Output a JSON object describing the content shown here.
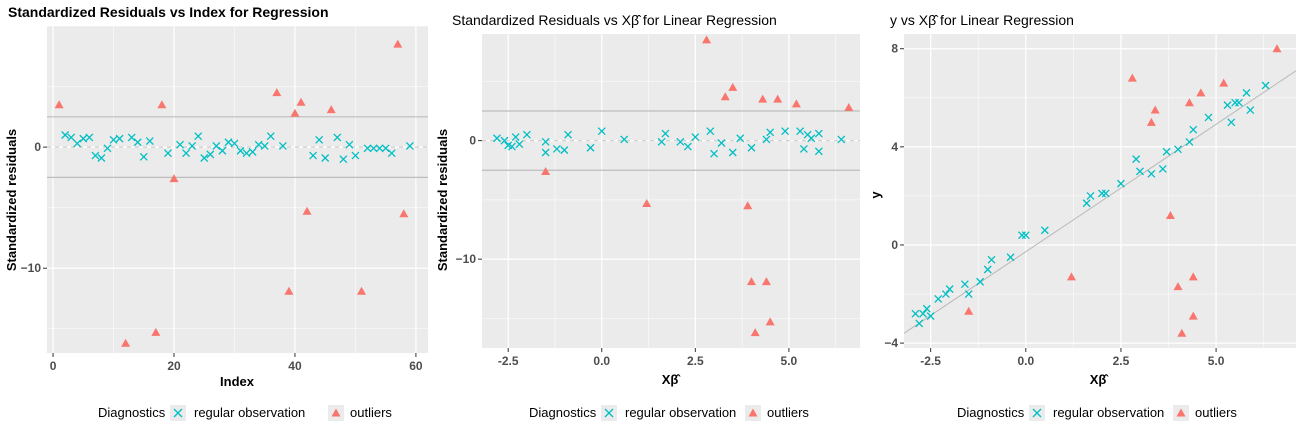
{
  "colors": {
    "regular": "#00bfc4",
    "outliers": "#f8766d",
    "panel": "#ebebeb",
    "grid": "#ffffff",
    "hline": "#bdbdbd"
  },
  "legend": {
    "title": "Diagnostics",
    "regular": "regular observation",
    "outliers": "outliers"
  },
  "chart_data": [
    {
      "type": "scatter",
      "title": "Standardized Residuals vs Index for Regression",
      "xlabel": "Index",
      "ylabel": "Standardized residuals",
      "xlim": [
        -1,
        62
      ],
      "ylim": [
        -17,
        10
      ],
      "xticks": [
        0,
        20,
        40,
        60
      ],
      "yticks": [
        -10,
        0
      ],
      "hlines": [
        2.5,
        -2.5
      ],
      "dashed_hline": 0,
      "series": [
        {
          "key": "regular",
          "marker": "x",
          "points": [
            [
              2,
              1
            ],
            [
              3,
              0.8
            ],
            [
              4,
              0.3
            ],
            [
              5,
              0.7
            ],
            [
              6,
              0.8
            ],
            [
              7,
              -0.7
            ],
            [
              8,
              -0.9
            ],
            [
              9,
              -0.1
            ],
            [
              10,
              0.6
            ],
            [
              11,
              0.7
            ],
            [
              13,
              0.8
            ],
            [
              14,
              0.4
            ],
            [
              15,
              -0.8
            ],
            [
              16,
              0.5
            ],
            [
              19,
              -0.5
            ],
            [
              21,
              0.2
            ],
            [
              22,
              -0.5
            ],
            [
              23,
              0.1
            ],
            [
              24,
              0.9
            ],
            [
              25,
              -0.9
            ],
            [
              26,
              -0.6
            ],
            [
              27,
              0.1
            ],
            [
              28,
              -0.3
            ],
            [
              29,
              0.4
            ],
            [
              30,
              0.3
            ],
            [
              31,
              -0.3
            ],
            [
              32,
              -0.5
            ],
            [
              33,
              -0.4
            ],
            [
              34,
              0.2
            ],
            [
              35,
              0.1
            ],
            [
              36,
              0.9
            ],
            [
              38,
              0.1
            ],
            [
              43,
              -0.7
            ],
            [
              44,
              0.6
            ],
            [
              45,
              -0.9
            ],
            [
              47,
              0.8
            ],
            [
              48,
              -1
            ],
            [
              49,
              0.2
            ],
            [
              50,
              -0.7
            ],
            [
              52,
              -0.1
            ],
            [
              53,
              -0.1
            ],
            [
              54,
              -0.1
            ],
            [
              55,
              -0.1
            ],
            [
              56,
              -0.5
            ],
            [
              59,
              0.1
            ]
          ]
        },
        {
          "key": "outliers",
          "marker": "triangle",
          "points": [
            [
              1,
              3.5
            ],
            [
              12,
              -16.2
            ],
            [
              17,
              -15.3
            ],
            [
              18,
              3.5
            ],
            [
              20,
              -2.6
            ],
            [
              37,
              4.5
            ],
            [
              40,
              2.8
            ],
            [
              41,
              3.7
            ],
            [
              42,
              -5.3
            ],
            [
              39,
              -11.9
            ],
            [
              46,
              3.1
            ],
            [
              51,
              -11.9
            ],
            [
              57,
              8.5
            ],
            [
              58,
              -5.5
            ]
          ]
        }
      ]
    },
    {
      "type": "scatter",
      "title": "Standardized Residuals vs Xβ̂ for Linear Regression",
      "xlabel": "Xβ̂",
      "ylabel": "Standardized residuals",
      "xlim": [
        -3.2,
        6.9
      ],
      "ylim": [
        -17.5,
        9
      ],
      "xticks": [
        -2.5,
        0.0,
        2.5,
        5.0
      ],
      "yticks": [
        -10,
        0
      ],
      "hlines": [
        2.5,
        -2.5
      ],
      "dashed_hline": 0,
      "series": [
        {
          "key": "regular",
          "marker": "x",
          "points": [
            [
              -2.8,
              0.2
            ],
            [
              -2.6,
              0
            ],
            [
              -2.5,
              -0.4
            ],
            [
              -2.4,
              -0.5
            ],
            [
              -2.3,
              0.3
            ],
            [
              -2.2,
              -0.3
            ],
            [
              -2,
              0.5
            ],
            [
              -1.5,
              -0.1
            ],
            [
              -1.5,
              -1
            ],
            [
              -1.2,
              -0.7
            ],
            [
              -1,
              -0.8
            ],
            [
              -0.9,
              0.5
            ],
            [
              -0.3,
              -0.6
            ],
            [
              0,
              0.8
            ],
            [
              0.6,
              0.1
            ],
            [
              1.6,
              -0.1
            ],
            [
              1.7,
              0.6
            ],
            [
              2.1,
              -0.1
            ],
            [
              2.3,
              -0.5
            ],
            [
              2.5,
              0.3
            ],
            [
              2.9,
              0.8
            ],
            [
              3,
              -1.1
            ],
            [
              3.2,
              -0.2
            ],
            [
              3.5,
              -1
            ],
            [
              3.7,
              0.2
            ],
            [
              4,
              -0.6
            ],
            [
              4.4,
              0.1
            ],
            [
              4.5,
              0.7
            ],
            [
              4.9,
              0.8
            ],
            [
              5.3,
              0.8
            ],
            [
              5.4,
              -0.7
            ],
            [
              5.5,
              0.5
            ],
            [
              5.6,
              0.2
            ],
            [
              5.8,
              -0.9
            ],
            [
              5.8,
              0.6
            ],
            [
              6.4,
              0.1
            ]
          ]
        },
        {
          "key": "outliers",
          "marker": "triangle",
          "points": [
            [
              -1.5,
              -2.6
            ],
            [
              1.2,
              -5.3
            ],
            [
              2.8,
              8.5
            ],
            [
              3.3,
              3.7
            ],
            [
              3.5,
              4.5
            ],
            [
              3.9,
              -5.5
            ],
            [
              4,
              -11.9
            ],
            [
              4.1,
              -16.2
            ],
            [
              4.3,
              3.5
            ],
            [
              4.4,
              -11.9
            ],
            [
              4.5,
              -15.3
            ],
            [
              4.7,
              3.5
            ],
            [
              5.2,
              3.1
            ],
            [
              6.6,
              2.8
            ]
          ]
        }
      ]
    },
    {
      "type": "scatter",
      "title": "y vs Xβ̂ for Linear Regression",
      "xlabel": "Xβ̂",
      "ylabel": "y",
      "xlim": [
        -3.2,
        7.1
      ],
      "ylim": [
        -4.2,
        8.6
      ],
      "xticks": [
        -2.5,
        0.0,
        2.5,
        5.0
      ],
      "yticks": [
        -4,
        0,
        4,
        8
      ],
      "fit_line": [
        [
          -3.2,
          -3.6
        ],
        [
          7.1,
          7.1
        ]
      ],
      "series": [
        {
          "key": "regular",
          "marker": "x",
          "points": [
            [
              -2.9,
              -2.8
            ],
            [
              -2.8,
              -3.2
            ],
            [
              -2.7,
              -2.8
            ],
            [
              -2.6,
              -2.6
            ],
            [
              -2.5,
              -2.9
            ],
            [
              -2.3,
              -2.2
            ],
            [
              -2.1,
              -2
            ],
            [
              -2,
              -1.8
            ],
            [
              -1.6,
              -1.6
            ],
            [
              -1.5,
              -2
            ],
            [
              -1.2,
              -1.5
            ],
            [
              -1,
              -1
            ],
            [
              -0.9,
              -0.6
            ],
            [
              -0.4,
              -0.5
            ],
            [
              -0.1,
              0.4
            ],
            [
              0,
              0.4
            ],
            [
              0.5,
              0.6
            ],
            [
              1.6,
              1.7
            ],
            [
              1.7,
              2
            ],
            [
              2,
              2.1
            ],
            [
              2.1,
              2.1
            ],
            [
              2.5,
              2.5
            ],
            [
              2.9,
              3.5
            ],
            [
              3,
              3
            ],
            [
              3.3,
              2.9
            ],
            [
              3.6,
              3.1
            ],
            [
              3.7,
              3.8
            ],
            [
              4,
              3.9
            ],
            [
              4.3,
              4.2
            ],
            [
              4.4,
              4.7
            ],
            [
              4.8,
              5.2
            ],
            [
              5.3,
              5.7
            ],
            [
              5.4,
              5
            ],
            [
              5.5,
              5.8
            ],
            [
              5.6,
              5.8
            ],
            [
              5.8,
              6.2
            ],
            [
              5.9,
              5.5
            ],
            [
              6.3,
              6.5
            ]
          ]
        },
        {
          "key": "outliers",
          "marker": "triangle",
          "points": [
            [
              -1.5,
              -2.7
            ],
            [
              1.2,
              -1.3
            ],
            [
              2.8,
              6.8
            ],
            [
              3.3,
              5
            ],
            [
              3.4,
              5.5
            ],
            [
              3.8,
              1.2
            ],
            [
              4,
              -1.7
            ],
            [
              4.1,
              -3.6
            ],
            [
              4.3,
              5.8
            ],
            [
              4.4,
              -1.3
            ],
            [
              4.4,
              -2.9
            ],
            [
              4.6,
              6.2
            ],
            [
              5.2,
              6.6
            ],
            [
              6.6,
              8
            ]
          ]
        }
      ]
    }
  ]
}
